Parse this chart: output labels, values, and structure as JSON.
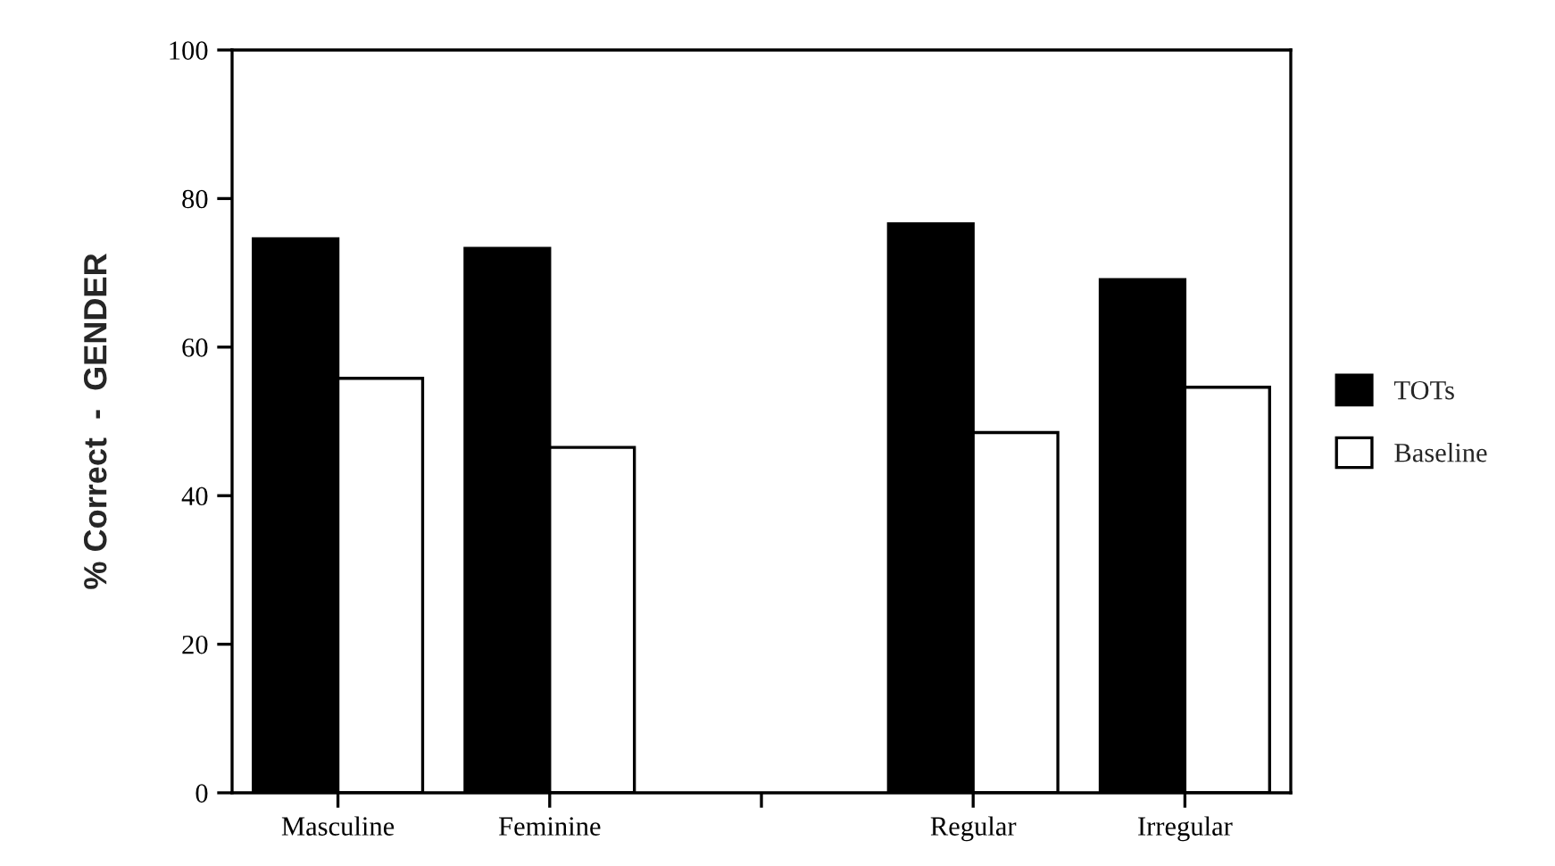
{
  "chart_data": {
    "type": "bar",
    "ylabel": "% Correct  -  GENDER",
    "categories": [
      "Masculine",
      "Feminine",
      null,
      "Regular",
      "Irregular"
    ],
    "series": [
      {
        "name": "TOTs",
        "color": "#000000",
        "values": [
          74.6,
          73.3,
          null,
          76.6,
          69.1
        ]
      },
      {
        "name": "Baseline",
        "color": "#ffffff",
        "values": [
          55.8,
          46.5,
          null,
          48.5,
          54.6
        ]
      }
    ],
    "ylim": [
      0,
      100
    ],
    "yticks": [
      0,
      20,
      40,
      60,
      80,
      100
    ],
    "grid": false,
    "legend": "right"
  }
}
